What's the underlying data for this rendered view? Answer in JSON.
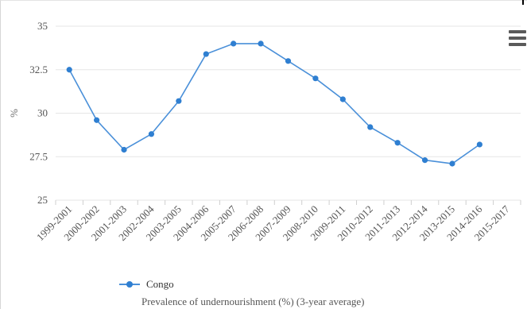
{
  "chart_data": {
    "type": "line",
    "categories": [
      "1999-2001",
      "2000-2002",
      "2001-2003",
      "2002-2004",
      "2003-2005",
      "2004-2006",
      "2005-2007",
      "2006-2008",
      "2007-2009",
      "2008-2010",
      "2009-2011",
      "2010-2012",
      "2011-2013",
      "2012-2014",
      "2013-2015",
      "2014-2016",
      "2015-2017"
    ],
    "series": [
      {
        "name": "Congo",
        "values": [
          32.5,
          29.6,
          27.9,
          28.8,
          30.7,
          33.4,
          34.0,
          34.0,
          33.0,
          32.0,
          30.8,
          29.2,
          28.3,
          27.3,
          27.1,
          28.2,
          null
        ]
      }
    ],
    "yticks": [
      "25",
      "27.5",
      "30",
      "32.5",
      "35"
    ],
    "ylim": [
      25,
      35
    ],
    "ylabel": "%",
    "xlabel": "",
    "legend_position": "bottom-left",
    "grid": true,
    "subtitle": "Prevalence of undernourishment (%) (3-year average)",
    "colors": {
      "line": "#4a90d9",
      "marker": "#2f7fd1",
      "grid": "#e6e6e6"
    }
  },
  "menu": {
    "icon": "hamburger-menu-icon"
  }
}
